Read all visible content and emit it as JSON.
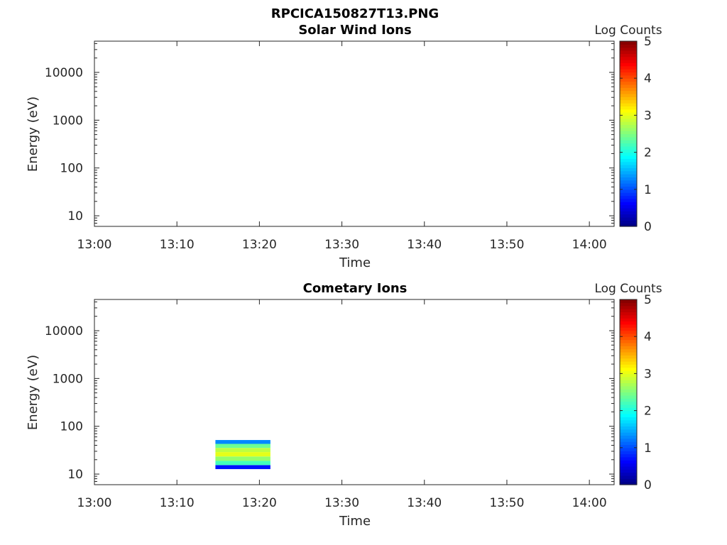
{
  "figure_title": "RPCICA150827T13.PNG",
  "colormap": [
    "#00007f",
    "#0000ff",
    "#007fff",
    "#00ffff",
    "#7fff7f",
    "#ffff00",
    "#ff7f00",
    "#ff0000",
    "#7f0000"
  ],
  "chart_data": [
    {
      "type": "heatmap",
      "title": "Solar Wind Ions",
      "xlabel": "Time",
      "ylabel": "Energy (eV)",
      "x_ticks": [
        "13:00",
        "13:10",
        "13:20",
        "13:30",
        "13:40",
        "13:50",
        "14:00"
      ],
      "y_ticks": [
        "10",
        "100",
        "1000",
        "10000"
      ],
      "y_scale": "log",
      "xlim": [
        "13:00",
        "14:03"
      ],
      "ylim": [
        6,
        45000
      ],
      "colorbar": {
        "label": "Log Counts",
        "ticks": [
          "0",
          "1",
          "2",
          "3",
          "4",
          "5"
        ],
        "range": [
          0,
          5
        ]
      },
      "data": []
    },
    {
      "type": "heatmap",
      "title": "Cometary Ions",
      "xlabel": "Time",
      "ylabel": "Energy (eV)",
      "x_ticks": [
        "13:00",
        "13:10",
        "13:20",
        "13:30",
        "13:40",
        "13:50",
        "14:00"
      ],
      "y_ticks": [
        "10",
        "100",
        "1000",
        "10000"
      ],
      "y_scale": "log",
      "xlim": [
        "13:00",
        "14:03"
      ],
      "ylim": [
        6,
        45000
      ],
      "colorbar": {
        "label": "Log Counts",
        "ticks": [
          "0",
          "1",
          "2",
          "3",
          "4",
          "5"
        ],
        "range": [
          0,
          5
        ]
      },
      "data": [
        {
          "t_start": "13:14:40",
          "t_end": "13:21:20",
          "energy_bins_eV": [
            14,
            17,
            21,
            26,
            32,
            39,
            47
          ],
          "log_counts": [
            0.7,
            2.2,
            2.6,
            3.0,
            2.8,
            2.4,
            1.3
          ]
        }
      ]
    }
  ]
}
